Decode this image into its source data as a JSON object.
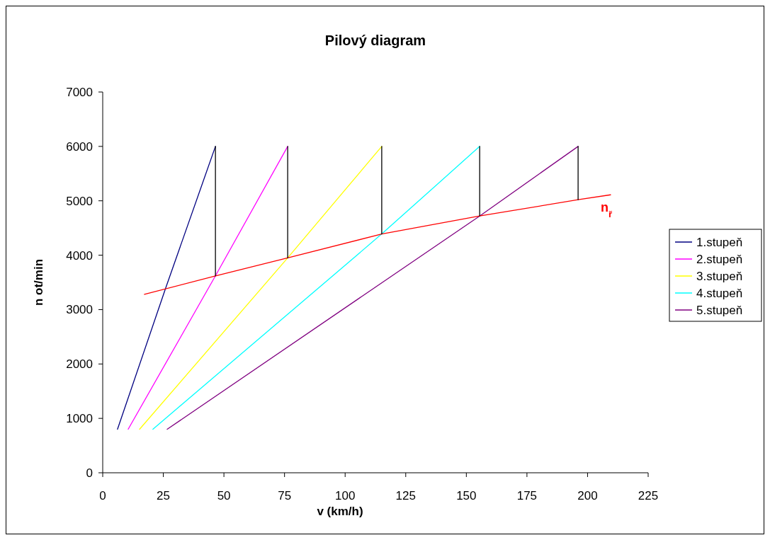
{
  "chart_data": {
    "type": "line",
    "title": "Pilový diagram",
    "xlabel": "v (km/h)",
    "ylabel": "n ot/min",
    "xlim": [
      0,
      225
    ],
    "xticks": [
      0,
      25,
      50,
      75,
      100,
      125,
      150,
      175,
      200,
      225
    ],
    "ylim": [
      0,
      7000
    ],
    "yticks": [
      0,
      1000,
      2000,
      3000,
      4000,
      5000,
      6000,
      7000
    ],
    "grid": false,
    "legend": "right",
    "marker": "none",
    "line_style": "solid",
    "series": [
      {
        "name": "1.stupeň",
        "color": "#000080",
        "x": [
          6.1,
          26,
          46.5
        ],
        "values": [
          800,
          3400,
          6000
        ]
      },
      {
        "name": "2.stupeň",
        "color": "#ff00ff",
        "x": [
          10.5,
          46.5,
          76.3
        ],
        "values": [
          800,
          3620,
          6000
        ]
      },
      {
        "name": "3.stupeň",
        "color": "#ffff00",
        "x": [
          15.2,
          76.3,
          115.1
        ],
        "values": [
          800,
          3950,
          6000
        ]
      },
      {
        "name": "4.stupeň",
        "color": "#00ffff",
        "x": [
          20.7,
          115.1,
          155.5
        ],
        "values": [
          800,
          4390,
          6000
        ]
      },
      {
        "name": "5.stupeň",
        "color": "#800080",
        "x": [
          26.6,
          155.5,
          196.1
        ],
        "values": [
          800,
          4720,
          6000
        ]
      },
      {
        "color": "#ff0000",
        "x": [
          17.2,
          46.5,
          76.3,
          115.1,
          155.5,
          196.1,
          209.5
        ],
        "values": [
          3280,
          3620,
          3950,
          4390,
          4720,
          5020,
          5110
        ]
      },
      {
        "color": "#000000",
        "x": [
          46.5,
          46.5
        ],
        "values": [
          6000,
          3620
        ]
      },
      {
        "color": "#000000",
        "x": [
          76.3,
          76.3
        ],
        "values": [
          6000,
          3950
        ]
      },
      {
        "color": "#000000",
        "x": [
          115.1,
          115.1
        ],
        "values": [
          6000,
          4390
        ]
      },
      {
        "color": "#000000",
        "x": [
          155.5,
          155.5
        ],
        "values": [
          6000,
          4720
        ]
      },
      {
        "color": "#000000",
        "x": [
          196.1,
          196.1
        ],
        "values": [
          6000,
          5020
        ]
      }
    ],
    "annotations": [
      {
        "text": "n$_{ř}$",
        "x": 209.5,
        "y": 5110
      }
    ]
  }
}
